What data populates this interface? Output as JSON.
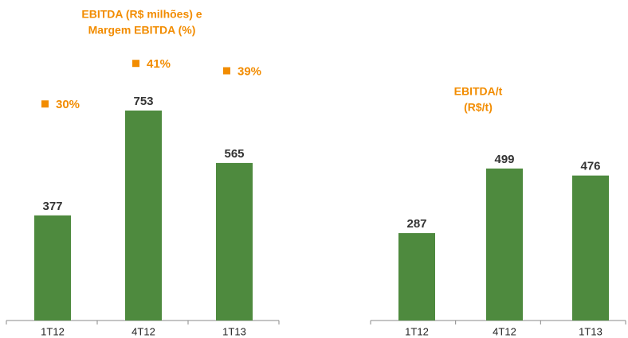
{
  "chart_data": [
    {
      "type": "bar",
      "title": [
        "EBITDA (R$ milhões) e",
        "Margem EBITDA (%)"
      ],
      "categories": [
        "1T12",
        "4T12",
        "1T13"
      ],
      "series": [
        {
          "type": "bar",
          "color": "#4e8a3e",
          "values": [
            377,
            753,
            565
          ]
        },
        {
          "type": "scatter",
          "axis": "y2",
          "color": "#f28c00",
          "values": [
            30,
            41,
            39
          ],
          "value_labels": [
            "30%",
            "41%",
            "39%"
          ]
        }
      ],
      "ylim": [
        0,
        1000
      ],
      "y2lim": [
        -28.6,
        47.0
      ]
    },
    {
      "type": "bar",
      "title": [
        "EBITDA/t",
        "(R$/t)"
      ],
      "categories": [
        "1T12",
        "4T12",
        "1T13"
      ],
      "series": [
        {
          "type": "bar",
          "color": "#4e8a3e",
          "values": [
            287,
            499,
            476
          ]
        }
      ],
      "ylim": [
        0,
        1000
      ]
    }
  ]
}
